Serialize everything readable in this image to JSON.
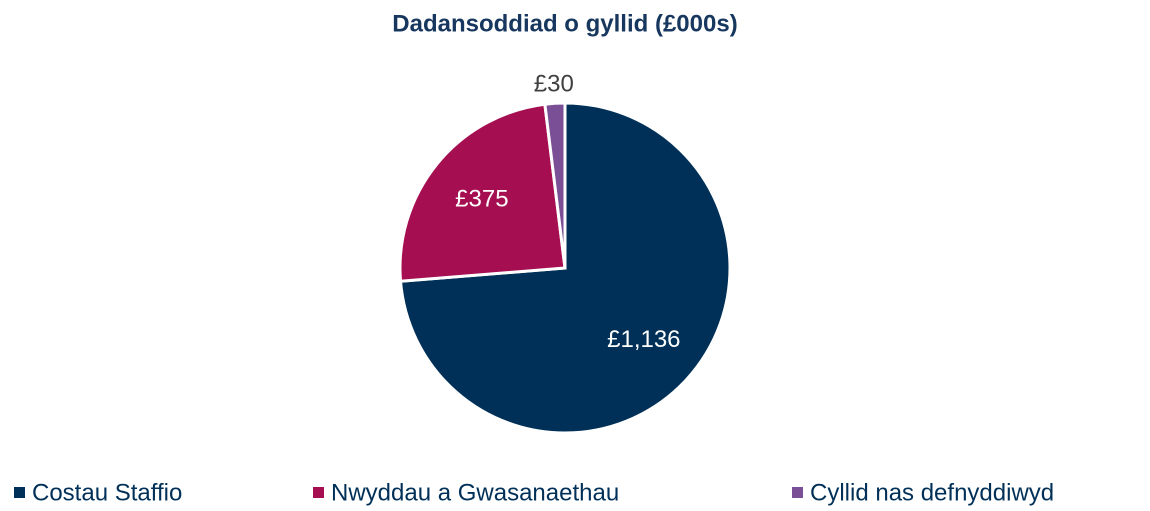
{
  "chart_data": {
    "type": "pie",
    "title": "Dadansoddiad o gyllid (£000s)",
    "categories": [
      "Costau Staffio",
      "Nwyddau a Gwasanaethau",
      "Cyllid nas defnyddiwyd"
    ],
    "values": [
      1136,
      375,
      30
    ],
    "value_labels": [
      "£1,136",
      "£375",
      "£30"
    ],
    "colors": [
      "#003057",
      "#a50f52",
      "#7b4f96"
    ],
    "legend": "bottom"
  }
}
